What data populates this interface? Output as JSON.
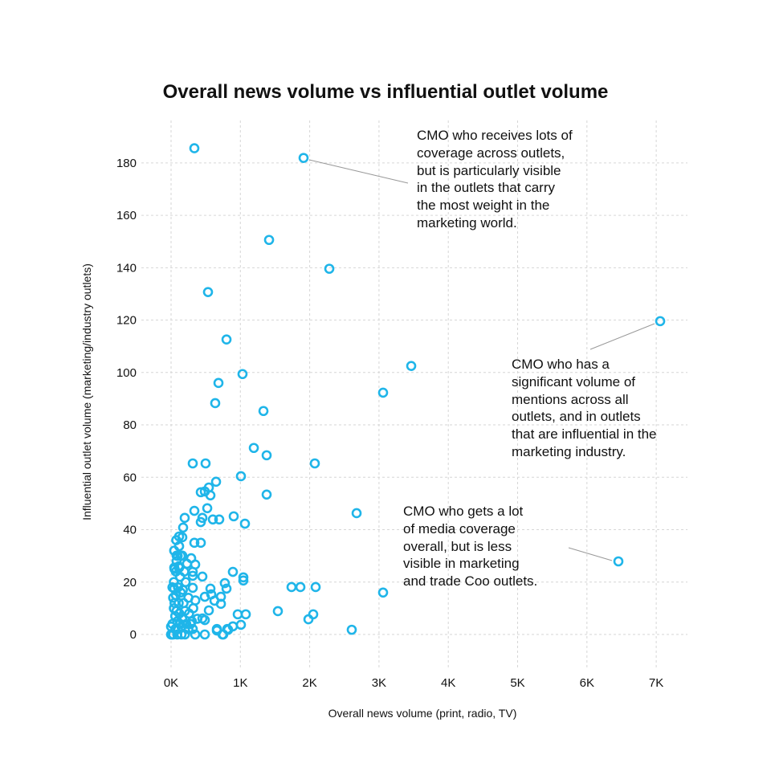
{
  "chart_data": {
    "type": "scatter",
    "title": "Overall news volume vs influential outlet volume",
    "xlabel": "Overall news volume (print, radio, TV)",
    "ylabel": "Influential outlet volume (marketing/industry outlets)",
    "xlim": [
      -400,
      7450
    ],
    "ylim": [
      -12,
      197
    ],
    "x_ticks": [
      0,
      1000,
      2000,
      3000,
      4000,
      5000,
      6000,
      7000
    ],
    "x_tick_labels": [
      "0K",
      "1K",
      "2K",
      "3K",
      "4K",
      "5K",
      "6K",
      "7K"
    ],
    "y_ticks": [
      0,
      20,
      40,
      60,
      80,
      100,
      120,
      140,
      160,
      180
    ],
    "y_tick_labels": [
      "0",
      "20",
      "40",
      "60",
      "80",
      "100",
      "120",
      "140",
      "160",
      "180"
    ],
    "grid": true,
    "marker": "hollow-circle",
    "color": "#1fb5e9",
    "points": [
      [
        336,
        185.6
      ],
      [
        1912,
        181.9
      ],
      [
        1414,
        150.6
      ],
      [
        2283,
        139.6
      ],
      [
        533,
        130.7
      ],
      [
        800,
        112.6
      ],
      [
        7057,
        119.6
      ],
      [
        1031,
        99.4
      ],
      [
        3465,
        102.5
      ],
      [
        684,
        96
      ],
      [
        637,
        88.3
      ],
      [
        3059,
        92.3
      ],
      [
        1333,
        85.3
      ],
      [
        1194,
        71.2
      ],
      [
        1379,
        68.4
      ],
      [
        2074,
        65.3
      ],
      [
        313,
        65.3
      ],
      [
        498,
        65.3
      ],
      [
        649,
        58.3
      ],
      [
        1008,
        60.4
      ],
      [
        1379,
        53.4
      ],
      [
        2677,
        46.3
      ],
      [
        904,
        45.1
      ],
      [
        1066,
        42.3
      ],
      [
        6454,
        27.9
      ],
      [
        3059,
        16
      ],
      [
        2607,
        1.8
      ],
      [
        1738,
        18.1
      ],
      [
        1866,
        18.1
      ],
      [
        2086,
        18.1
      ],
      [
        1541,
        8.9
      ],
      [
        2051,
        7.7
      ],
      [
        1982,
        5.8
      ],
      [
        1043,
        21.8
      ],
      [
        1043,
        20.6
      ],
      [
        776,
        19.6
      ],
      [
        892,
        23.9
      ],
      [
        962,
        7.7
      ],
      [
        1078,
        7.7
      ],
      [
        1008,
        3.7
      ],
      [
        429,
        54.3
      ],
      [
        487,
        54.6
      ],
      [
        545,
        56.1
      ],
      [
        568,
        53.1
      ],
      [
        336,
        47.2
      ],
      [
        522,
        48.2
      ],
      [
        452,
        44.5
      ],
      [
        429,
        42.9
      ],
      [
        603,
        43.9
      ],
      [
        695,
        43.9
      ],
      [
        197,
        44.5
      ],
      [
        174,
        40.8
      ],
      [
        116,
        37.4
      ],
      [
        162,
        37.1
      ],
      [
        116,
        33.7
      ],
      [
        336,
        35
      ],
      [
        429,
        35
      ],
      [
        81,
        30.1
      ],
      [
        162,
        30.1
      ],
      [
        290,
        29.1
      ],
      [
        348,
        26.7
      ],
      [
        46,
        25.5
      ],
      [
        116,
        25.5
      ],
      [
        313,
        23.9
      ],
      [
        313,
        22.4
      ],
      [
        452,
        22.1
      ],
      [
        800,
        17.5
      ],
      [
        313,
        17.8
      ],
      [
        46,
        17.5
      ],
      [
        568,
        17.5
      ],
      [
        580,
        15.3
      ],
      [
        719,
        14.4
      ],
      [
        719,
        11.7
      ],
      [
        626,
        12.9
      ],
      [
        487,
        14.4
      ],
      [
        545,
        9.2
      ],
      [
        452,
        6.1
      ],
      [
        487,
        5.5
      ],
      [
        313,
        2.1
      ],
      [
        661,
        2.1
      ],
      [
        742,
        0
      ],
      [
        811,
        2.1
      ],
      [
        487,
        0
      ],
      [
        348,
        0
      ],
      [
        0,
        0
      ],
      [
        0,
        3
      ],
      [
        661,
        1.5
      ],
      [
        753,
        0
      ],
      [
        823,
        1.8
      ],
      [
        892,
        3.1
      ],
      [
        30,
        0
      ],
      [
        60,
        2
      ],
      [
        90,
        5
      ],
      [
        120,
        8
      ],
      [
        150,
        3
      ],
      [
        180,
        12
      ],
      [
        40,
        10
      ],
      [
        70,
        15
      ],
      [
        100,
        18
      ],
      [
        130,
        22
      ],
      [
        160,
        6
      ],
      [
        200,
        9
      ],
      [
        250,
        14
      ],
      [
        280,
        4
      ],
      [
        50,
        25
      ],
      [
        80,
        28
      ],
      [
        110,
        12
      ],
      [
        140,
        16
      ],
      [
        60,
        7
      ],
      [
        30,
        14
      ],
      [
        20,
        4
      ],
      [
        10,
        0
      ],
      [
        90,
        0
      ],
      [
        150,
        0
      ],
      [
        200,
        0
      ],
      [
        250,
        2
      ],
      [
        300,
        5
      ],
      [
        320,
        10
      ],
      [
        350,
        13
      ],
      [
        380,
        6
      ],
      [
        40,
        20
      ],
      [
        70,
        24
      ],
      [
        100,
        2
      ],
      [
        130,
        4
      ],
      [
        170,
        17
      ],
      [
        210,
        20
      ],
      [
        230,
        27
      ],
      [
        260,
        8
      ],
      [
        20,
        18
      ],
      [
        50,
        12
      ],
      [
        80,
        9
      ],
      [
        110,
        26
      ],
      [
        140,
        30
      ],
      [
        190,
        24
      ],
      [
        220,
        4
      ],
      [
        45,
        32
      ],
      [
        75,
        36
      ],
      [
        95,
        30
      ]
    ],
    "annotations": [
      {
        "point": [
          1912,
          181.9
        ],
        "lines": [
          "CMO who receives lots of",
          "coverage across outlets,",
          "but is particularly visible",
          "in the outlets that carry",
          "the most weight in the",
          "marketing world."
        ]
      },
      {
        "point": [
          7057,
          119.6
        ],
        "lines": [
          "CMO who has a",
          "significant volume of",
          "mentions across all",
          "outlets, and in outlets",
          "that are influential in the",
          "marketing industry."
        ]
      },
      {
        "point": [
          6454,
          27.9
        ],
        "lines": [
          "CMO who gets a lot",
          "of media coverage",
          "overall, but is less",
          "visible in marketing",
          "and trade Coo outlets."
        ]
      }
    ]
  }
}
